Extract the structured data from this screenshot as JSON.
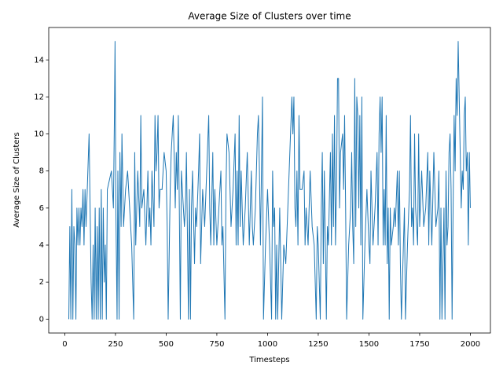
{
  "chart_data": {
    "type": "line",
    "title": "Average Size of Clusters over time",
    "x_label": "Timesteps",
    "y_label": "Average Size of Clusters",
    "color": "#1f77b4",
    "x": [
      20,
      25,
      30,
      35,
      40,
      45,
      50,
      55,
      60,
      65,
      70,
      75,
      80,
      85,
      90,
      95,
      100,
      105,
      120,
      125,
      130,
      135,
      140,
      145,
      150,
      155,
      160,
      165,
      170,
      175,
      180,
      185,
      190,
      195,
      200,
      205,
      210,
      230,
      240,
      245,
      248,
      252,
      258,
      262,
      268,
      272,
      278,
      282,
      290,
      300,
      310,
      320,
      330,
      340,
      345,
      350,
      360,
      370,
      375,
      380,
      390,
      400,
      410,
      415,
      420,
      425,
      430,
      440,
      445,
      450,
      455,
      460,
      465,
      470,
      480,
      490,
      500,
      505,
      510,
      520,
      525,
      530,
      535,
      545,
      550,
      555,
      560,
      565,
      570,
      575,
      580,
      590,
      595,
      600,
      610,
      615,
      620,
      625,
      630,
      640,
      645,
      650,
      660,
      665,
      670,
      680,
      690,
      700,
      710,
      715,
      720,
      730,
      735,
      740,
      750,
      760,
      770,
      775,
      780,
      790,
      795,
      800,
      810,
      820,
      830,
      840,
      845,
      850,
      855,
      860,
      865,
      870,
      880,
      890,
      900,
      910,
      920,
      925,
      930,
      940,
      950,
      955,
      960,
      965,
      975,
      980,
      990,
      1000,
      1010,
      1020,
      1025,
      1030,
      1035,
      1040,
      1045,
      1050,
      1060,
      1070,
      1080,
      1090,
      1100,
      1110,
      1120,
      1125,
      1130,
      1135,
      1140,
      1145,
      1150,
      1155,
      1160,
      1170,
      1180,
      1185,
      1190,
      1200,
      1210,
      1220,
      1230,
      1240,
      1245,
      1250,
      1260,
      1265,
      1270,
      1275,
      1280,
      1290,
      1295,
      1300,
      1310,
      1315,
      1320,
      1325,
      1330,
      1335,
      1340,
      1345,
      1350,
      1355,
      1360,
      1370,
      1375,
      1380,
      1385,
      1390,
      1400,
      1410,
      1415,
      1420,
      1425,
      1430,
      1435,
      1440,
      1445,
      1450,
      1455,
      1460,
      1465,
      1470,
      1480,
      1490,
      1500,
      1505,
      1510,
      1520,
      1530,
      1540,
      1545,
      1550,
      1555,
      1560,
      1565,
      1570,
      1575,
      1580,
      1585,
      1590,
      1595,
      1600,
      1605,
      1610,
      1620,
      1625,
      1630,
      1640,
      1645,
      1650,
      1655,
      1660,
      1670,
      1675,
      1680,
      1690,
      1700,
      1705,
      1710,
      1715,
      1720,
      1725,
      1730,
      1740,
      1745,
      1750,
      1760,
      1770,
      1780,
      1790,
      1795,
      1800,
      1810,
      1820,
      1830,
      1840,
      1845,
      1850,
      1855,
      1860,
      1870,
      1875,
      1880,
      1885,
      1890,
      1895,
      1900,
      1905,
      1910,
      1915,
      1920,
      1925,
      1930,
      1935,
      1940,
      1945,
      1950,
      1955,
      1960,
      1965,
      1970,
      1975,
      1980,
      1985,
      1990,
      1995,
      2000
    ],
    "values": [
      0,
      5,
      0,
      7,
      0,
      5,
      4,
      0,
      6,
      4,
      6,
      4,
      6,
      5,
      7,
      4,
      7,
      5,
      10,
      6,
      2,
      0,
      4,
      0,
      6,
      0,
      5,
      0,
      6,
      0,
      7,
      0,
      6,
      2,
      4,
      0,
      7,
      8,
      6,
      11,
      15,
      6,
      0,
      8,
      0,
      9,
      5,
      10,
      5,
      7,
      8,
      6,
      4,
      0,
      9,
      4,
      8,
      5,
      11,
      6,
      7,
      4,
      8,
      5,
      6,
      4,
      8,
      5,
      11,
      8,
      9,
      11,
      6,
      7,
      7,
      9,
      8,
      5,
      0,
      7,
      9,
      10,
      11,
      6,
      9,
      7,
      11,
      6,
      0,
      8,
      7,
      5,
      6,
      9,
      0,
      7,
      0,
      6,
      8,
      3,
      6,
      5,
      8,
      10,
      3,
      7,
      5,
      8,
      11,
      6,
      4,
      9,
      4,
      7,
      4,
      6,
      8,
      4,
      5,
      0,
      7,
      10,
      9,
      5,
      7,
      10,
      4,
      8,
      4,
      11,
      5,
      8,
      4,
      6,
      9,
      4,
      8,
      5,
      4,
      6,
      10,
      11,
      8,
      4,
      12,
      0,
      4,
      7,
      4,
      0,
      8,
      5,
      6,
      0,
      4,
      0,
      6,
      0,
      4,
      3,
      6,
      9,
      12,
      10,
      12,
      6,
      5,
      8,
      4,
      11,
      7,
      7,
      8,
      4,
      6,
      4,
      8,
      5,
      4,
      0,
      5,
      4,
      0,
      6,
      9,
      3,
      8,
      0,
      5,
      4,
      9,
      4,
      10,
      5,
      11,
      4,
      7,
      13,
      13,
      6,
      9,
      10,
      7,
      11,
      6,
      0,
      4,
      6,
      9,
      5,
      3,
      13,
      5,
      12,
      11,
      6,
      11,
      4,
      12,
      0,
      4,
      7,
      4,
      3,
      8,
      4,
      6,
      9,
      4,
      10,
      12,
      9,
      12,
      4,
      7,
      4,
      11,
      3,
      6,
      0,
      6,
      4,
      5,
      6,
      5,
      8,
      4,
      8,
      3,
      0,
      4,
      6,
      0,
      4,
      7,
      11,
      5,
      6,
      4,
      10,
      6,
      4,
      10,
      5,
      8,
      5,
      6,
      9,
      4,
      8,
      4,
      9,
      5,
      6,
      8,
      0,
      6,
      0,
      6,
      0,
      8,
      4,
      5,
      9,
      10,
      7,
      0,
      6,
      11,
      8,
      13,
      11,
      15,
      12,
      9,
      6,
      8,
      7,
      11,
      12,
      8,
      9,
      4,
      9,
      6
    ],
    "xlim": [
      -79,
      2099
    ],
    "ylim": [
      -0.75,
      15.75
    ],
    "xticks": [
      0,
      250,
      500,
      750,
      1000,
      1250,
      1500,
      1750,
      2000
    ],
    "yticks": [
      0,
      2,
      4,
      6,
      8,
      10,
      12,
      14
    ]
  }
}
